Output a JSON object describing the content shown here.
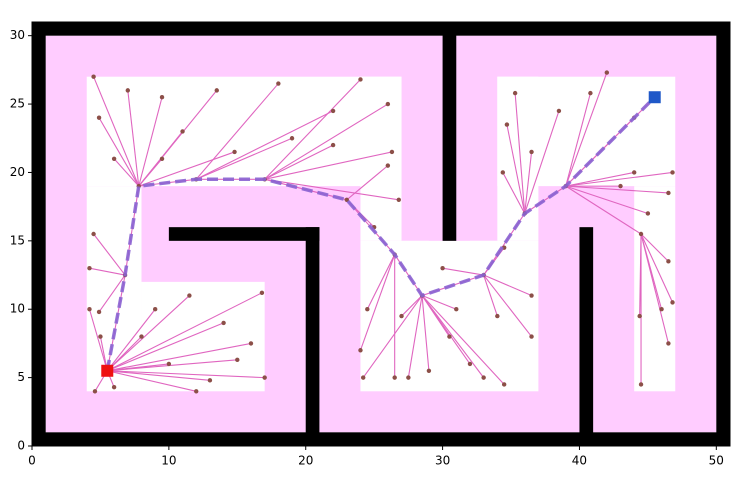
{
  "chart_data": {
    "type": "rrt",
    "xlim": [
      0,
      51
    ],
    "ylim": [
      0,
      31
    ],
    "xticks": [
      0,
      10,
      20,
      30,
      40,
      50
    ],
    "yticks": [
      0,
      5,
      10,
      15,
      20,
      25,
      30
    ],
    "wall_color": "#000000",
    "inflated_color": "#ffccff",
    "free_color": "#ffffff",
    "walls": [
      [
        0,
        0,
        51,
        1
      ],
      [
        0,
        30,
        51,
        31
      ],
      [
        0,
        0,
        1,
        31
      ],
      [
        50,
        0,
        51,
        31
      ],
      [
        20,
        0,
        21,
        16
      ],
      [
        10,
        15,
        21,
        16
      ],
      [
        30,
        15,
        31,
        31
      ],
      [
        40,
        0,
        41,
        16
      ]
    ],
    "inflated": [
      [
        1,
        1,
        50,
        30
      ]
    ],
    "free": [
      [
        4,
        19,
        27,
        27
      ],
      [
        4,
        4,
        8,
        19
      ],
      [
        8,
        4,
        17,
        12
      ],
      [
        24,
        4,
        37,
        15
      ],
      [
        24,
        15,
        27,
        27
      ],
      [
        34,
        15,
        37,
        27
      ],
      [
        34,
        19,
        47,
        27
      ],
      [
        44,
        4,
        47,
        19
      ],
      [
        27,
        13,
        29,
        15
      ],
      [
        32,
        13,
        34,
        15
      ]
    ],
    "tree": {
      "edge_color": "#e066c0",
      "node_color": "#8c4f48",
      "x": [
        5.5,
        6.8,
        7.8,
        12,
        17,
        23,
        26.5,
        28.5,
        33,
        36,
        39,
        45.5,
        44.5,
        16.8,
        11.5,
        17,
        12,
        16,
        14,
        9,
        8,
        10,
        4.6,
        5,
        4.2,
        6,
        13,
        15,
        4.5,
        4.9,
        4.2,
        4.5,
        4.9,
        6,
        7,
        9.5,
        11,
        13.5,
        14.8,
        9.5,
        18,
        19,
        22,
        24,
        26,
        22,
        26.3,
        26.8,
        25,
        26,
        24.5,
        24,
        26.5,
        24.2,
        27.5,
        29,
        30.5,
        31,
        32,
        33,
        34.5,
        27,
        30,
        34.5,
        36.5,
        34,
        36.5,
        35.3,
        34.7,
        36.5,
        34.4,
        38.5,
        42,
        44,
        40.8,
        46.8,
        45,
        44,
        43,
        46.5,
        46.8,
        46.5,
        44.5,
        44.4,
        46.5,
        46
      ],
      "y": [
        5.5,
        12.5,
        19,
        19.5,
        19.5,
        18,
        14,
        11,
        12.5,
        17,
        19,
        25.5,
        15.5,
        11.2,
        11,
        5,
        4,
        7.5,
        9,
        10,
        8,
        6,
        4,
        8,
        10,
        4.3,
        4.8,
        6.3,
        15.5,
        9.8,
        13,
        27,
        24,
        21,
        26,
        25.5,
        23,
        26,
        21.5,
        21,
        26.5,
        22.5,
        24.5,
        26.8,
        25,
        22,
        21.5,
        18,
        16,
        20.5,
        10,
        7,
        5,
        5,
        5,
        5.5,
        8,
        10,
        6,
        5,
        4.5,
        9.5,
        13,
        14.5,
        11,
        9.5,
        8,
        25.8,
        23.5,
        21.5,
        20,
        24.5,
        27.3,
        24,
        25.8,
        20,
        17,
        20,
        19,
        18.5,
        10.5,
        13.5,
        4.5,
        9.5,
        7.5,
        10
      ],
      "parent": [
        null,
        0,
        1,
        2,
        3,
        4,
        5,
        6,
        7,
        8,
        9,
        10,
        10,
        0,
        0,
        0,
        0,
        0,
        0,
        0,
        0,
        0,
        0,
        0,
        0,
        0,
        0,
        0,
        1,
        1,
        1,
        2,
        2,
        2,
        2,
        2,
        2,
        2,
        2,
        2,
        3,
        3,
        3,
        4,
        4,
        4,
        4,
        4,
        5,
        5,
        6,
        6,
        6,
        7,
        7,
        7,
        7,
        7,
        7,
        7,
        7,
        7,
        8,
        8,
        8,
        8,
        8,
        9,
        9,
        9,
        9,
        9,
        10,
        10,
        10,
        10,
        10,
        10,
        10,
        10,
        12,
        12,
        12,
        12,
        12,
        12
      ]
    },
    "path": {
      "color": "#8a63d2",
      "x": [
        5.5,
        6.8,
        7.8,
        12,
        17,
        23,
        26.5,
        28.5,
        33,
        36,
        39,
        45.5
      ],
      "y": [
        5.5,
        12.5,
        19,
        19.5,
        19.5,
        18,
        14,
        11,
        12.5,
        17,
        19,
        25.5
      ]
    },
    "start": {
      "x": 5.5,
      "y": 5.5,
      "color": "#ee1111"
    },
    "goal": {
      "x": 45.5,
      "y": 25.5,
      "color": "#1f58c8"
    }
  }
}
